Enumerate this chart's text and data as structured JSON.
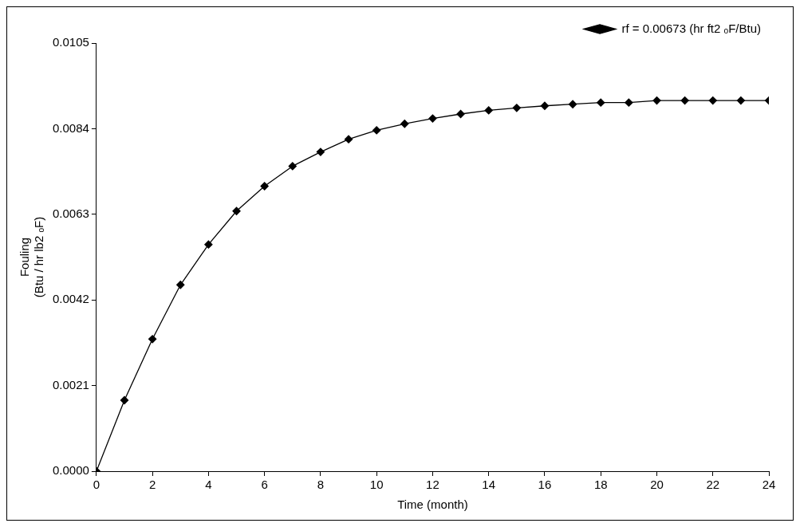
{
  "chart_data": {
    "type": "line",
    "xlabel": "Time (month)",
    "ylabel": "Fouling\n(Btu / hr lb2 ₒF)",
    "x": [
      0,
      1,
      2,
      3,
      4,
      5,
      6,
      7,
      8,
      9,
      10,
      11,
      12,
      13,
      14,
      15,
      16,
      17,
      18,
      19,
      20,
      21,
      22,
      23,
      24
    ],
    "series": [
      {
        "name": "rf = 0.00673 (hr ft2 ₒF/Btu)",
        "color": "#000000",
        "values": [
          0,
          0.00174,
          0.00324,
          0.00457,
          0.00556,
          0.00638,
          0.00699,
          0.00748,
          0.00783,
          0.00814,
          0.00836,
          0.00852,
          0.00865,
          0.00876,
          0.00885,
          0.00891,
          0.00896,
          0.009,
          0.00904,
          0.00904,
          0.00909,
          0.00909,
          0.00909,
          0.00909,
          0.00909
        ]
      }
    ],
    "xlim": [
      0,
      24
    ],
    "xticks": [
      0,
      2,
      4,
      6,
      8,
      10,
      12,
      14,
      16,
      18,
      20,
      22,
      24
    ],
    "ylim": [
      0,
      0.0105
    ],
    "yticks": [
      {
        "value": 0,
        "label": "0.0000"
      },
      {
        "value": 0.0021,
        "label": "0.0021"
      },
      {
        "value": 0.0042,
        "label": "0.0042"
      },
      {
        "value": 0.0063,
        "label": "0.0063"
      },
      {
        "value": 0.0084,
        "label": "0.0084"
      },
      {
        "value": 0.0105,
        "label": "0.0105"
      }
    ],
    "grid": false,
    "legend": "top right",
    "marker": "diamond",
    "line_style": "solid"
  }
}
